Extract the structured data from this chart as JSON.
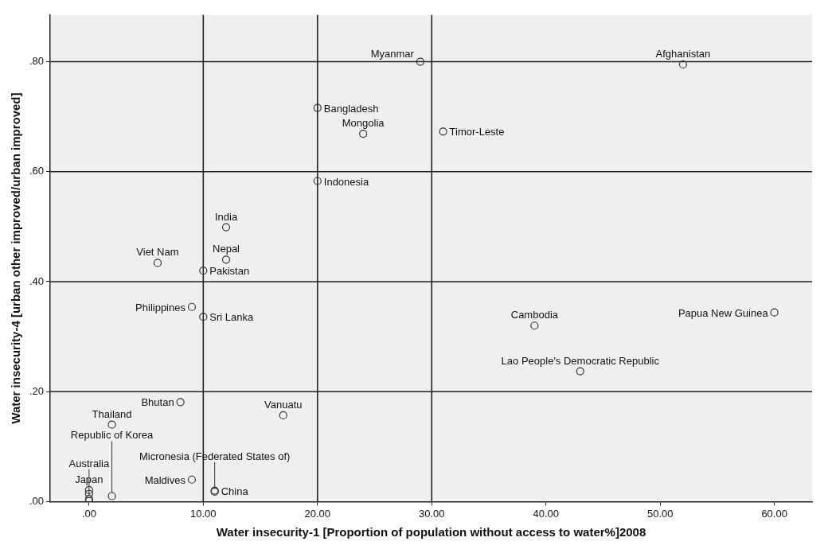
{
  "chart_data": {
    "type": "scatter",
    "xlabel": "Water insecurity-1 [Proportion of population without access to water%]2008",
    "ylabel": "Water insecurity-4 [urban other improved/urban improved]",
    "series": [
      {
        "color": "#333333",
        "x": [
          29,
          52,
          20,
          24,
          31,
          20,
          12,
          12,
          6,
          10,
          9,
          10,
          39,
          60,
          43,
          8,
          17,
          2,
          9,
          11,
          11,
          0,
          2,
          0,
          0,
          0
        ],
        "values": [
          0.8,
          0.795,
          0.716,
          0.669,
          0.673,
          0.583,
          0.499,
          0.44,
          0.434,
          0.42,
          0.354,
          0.336,
          0.32,
          0.344,
          0.237,
          0.181,
          0.157,
          0.14,
          0.04,
          0.02,
          0.018,
          0.021,
          0.01,
          0.005,
          0.014,
          0.001
        ]
      }
    ],
    "marker": "circle",
    "grid": false,
    "legend": false,
    "xlim": [
      -3.4,
      63.3
    ],
    "xticks": [
      {
        "value": 0,
        "label": ".00"
      },
      {
        "value": 10,
        "label": "10.00"
      },
      {
        "value": 20,
        "label": "20.00"
      },
      {
        "value": 30,
        "label": "30.00"
      },
      {
        "value": 40,
        "label": "40.00"
      },
      {
        "value": 50,
        "label": "50.00"
      },
      {
        "value": 60,
        "label": "60.00"
      }
    ],
    "ylim": [
      0,
      0.885
    ],
    "yticks": [
      {
        "value": 0,
        "label": ".00"
      },
      {
        "value": 0.2,
        "label": ".20"
      },
      {
        "value": 0.4,
        "label": ".40"
      },
      {
        "value": 0.6,
        "label": ".60"
      },
      {
        "value": 0.8,
        "label": ".80"
      }
    ],
    "ref_lines": [
      {
        "axis": "x",
        "value": 10,
        "label": null
      },
      {
        "axis": "x",
        "value": 20,
        "label": null
      },
      {
        "axis": "x",
        "value": 30,
        "label": null
      },
      {
        "axis": "y",
        "value": 0.2,
        "label": null
      },
      {
        "axis": "y",
        "value": 0.4,
        "label": null
      },
      {
        "axis": "y",
        "value": 0.6,
        "label": null
      },
      {
        "axis": "y",
        "value": 0.8,
        "label": null
      }
    ],
    "annotations": [
      {
        "text": "Myanmar",
        "x": 29,
        "y": 0.8
      },
      {
        "text": "Afghanistan",
        "x": 52,
        "y": 0.795
      },
      {
        "text": "Bangladesh",
        "x": 20,
        "y": 0.716
      },
      {
        "text": "Mongolia",
        "x": 24,
        "y": 0.669
      },
      {
        "text": "Timor-Leste",
        "x": 31,
        "y": 0.673
      },
      {
        "text": "Indonesia",
        "x": 20,
        "y": 0.583
      },
      {
        "text": "India",
        "x": 12,
        "y": 0.499
      },
      {
        "text": "Nepal",
        "x": 12,
        "y": 0.44
      },
      {
        "text": "Viet Nam",
        "x": 6,
        "y": 0.434
      },
      {
        "text": "Pakistan",
        "x": 10,
        "y": 0.42
      },
      {
        "text": "Philippines",
        "x": 9,
        "y": 0.354
      },
      {
        "text": "Sri Lanka",
        "x": 10,
        "y": 0.336
      },
      {
        "text": "Cambodia",
        "x": 39,
        "y": 0.32
      },
      {
        "text": "Papua New Guinea",
        "x": 60,
        "y": 0.344
      },
      {
        "text": "Lao People's Democratic Republic",
        "x": 43,
        "y": 0.237
      },
      {
        "text": "Bhutan",
        "x": 8,
        "y": 0.181
      },
      {
        "text": "Vanuatu",
        "x": 17,
        "y": 0.157
      },
      {
        "text": "Thailand",
        "x": 2,
        "y": 0.14
      },
      {
        "text": "Maldives",
        "x": 9,
        "y": 0.04
      },
      {
        "text": "China",
        "x": 11,
        "y": 0.02
      },
      {
        "text": "Micronesia (Federated States of)",
        "x": 11,
        "y": 0.018
      },
      {
        "text": "Japan",
        "x": 0,
        "y": 0.021
      },
      {
        "text": "Republic of Korea",
        "x": 2,
        "y": 0.01
      },
      {
        "text": "Australia",
        "x": 0,
        "y": 0.005
      }
    ]
  }
}
